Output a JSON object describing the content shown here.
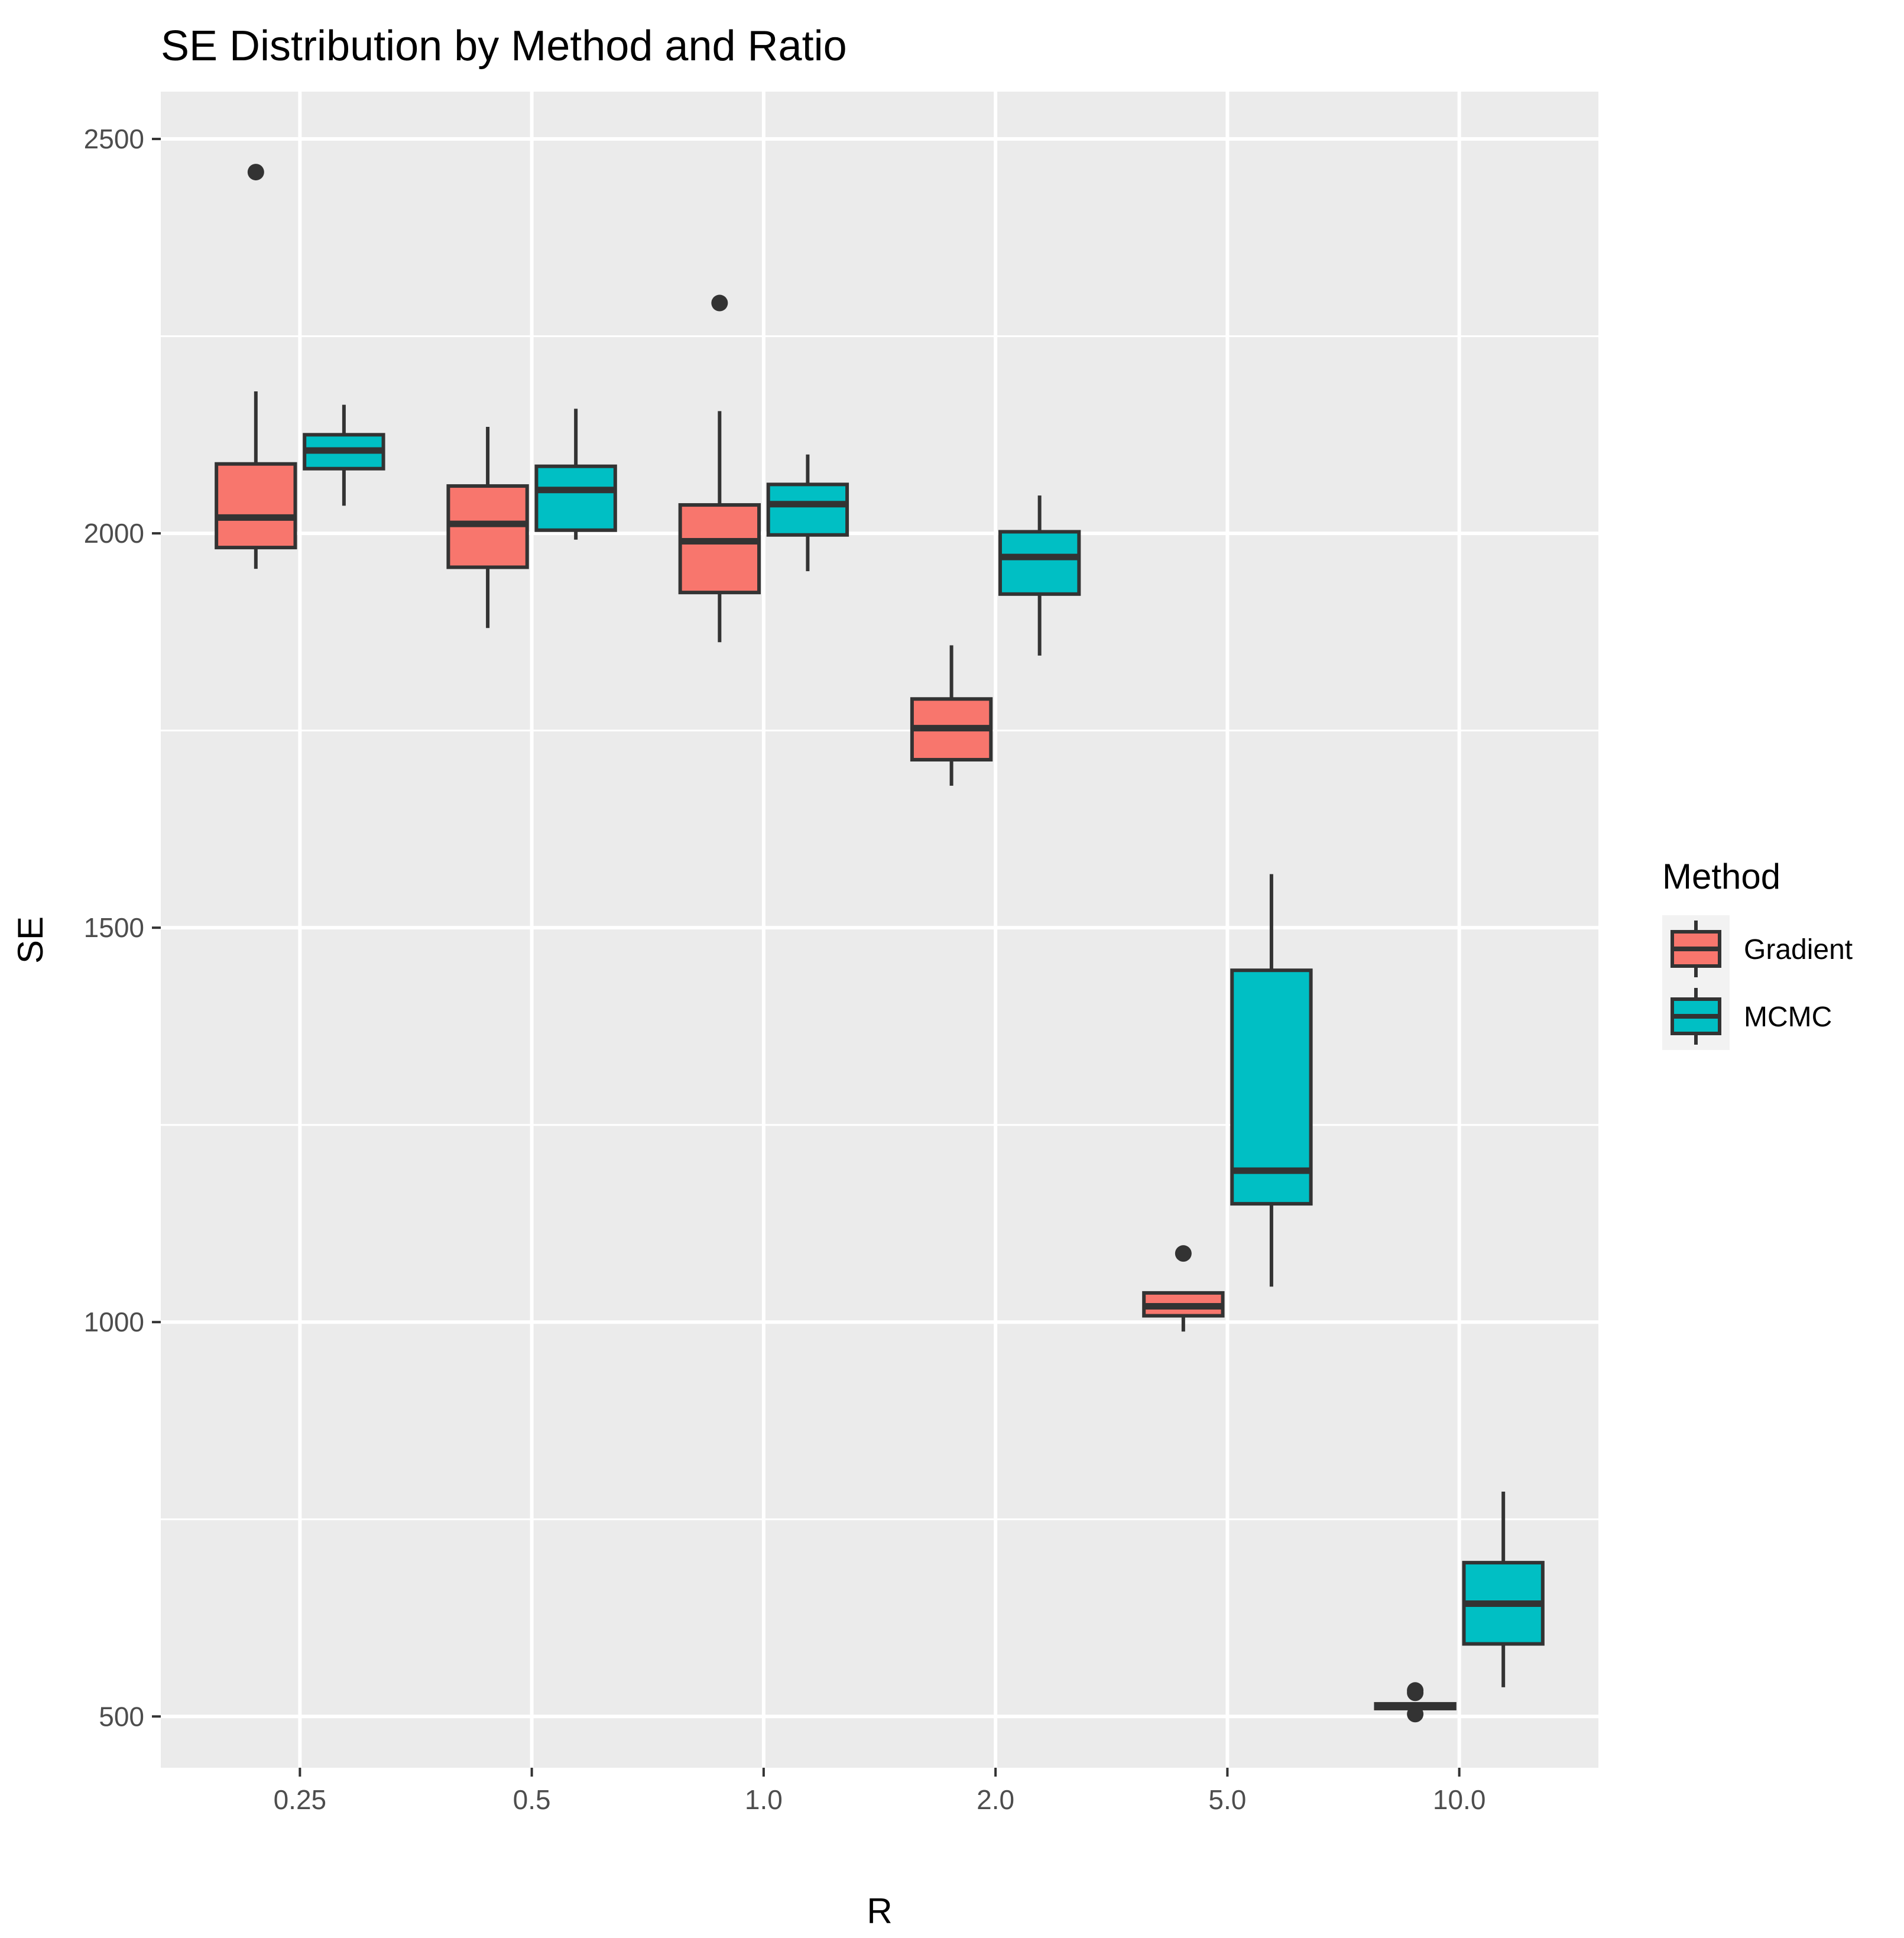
{
  "chart_data": {
    "type": "boxplot",
    "title": "SE Distribution by Method and Ratio",
    "xlabel": "R",
    "ylabel": "SE",
    "categories": [
      "0.25",
      "0.5",
      "1.0",
      "2.0",
      "5.0",
      "10.0"
    ],
    "ylim": [
      435,
      2560
    ],
    "yticks": [
      500,
      1000,
      1500,
      2000,
      2500
    ],
    "ytick_labels": [
      "500",
      "1000",
      "1500",
      "2000",
      "2500"
    ],
    "legend": {
      "title": "Method",
      "position": "right"
    },
    "colors": {
      "Gradient": "#F8766D",
      "MCMC": "#00BFC4",
      "outline": "#333333",
      "panel": "#EBEBEB",
      "grid": "#FFFFFF"
    },
    "series": [
      {
        "name": "Gradient",
        "boxes": [
          {
            "min": 1955,
            "q1": 1982,
            "median": 2020,
            "q3": 2088,
            "max": 2180,
            "outliers": [
              2458
            ]
          },
          {
            "min": 1880,
            "q1": 1957,
            "median": 2012,
            "q3": 2060,
            "max": 2135,
            "outliers": []
          },
          {
            "min": 1862,
            "q1": 1925,
            "median": 1990,
            "q3": 2036,
            "max": 2155,
            "outliers": [
              2292
            ]
          },
          {
            "min": 1680,
            "q1": 1713,
            "median": 1753,
            "q3": 1790,
            "max": 1858,
            "outliers": []
          },
          {
            "min": 988,
            "q1": 1008,
            "median": 1020,
            "q3": 1037,
            "max": 1037,
            "outliers": [
              1087
            ]
          },
          {
            "min": 510,
            "q1": 510,
            "median": 513,
            "q3": 516,
            "max": 516,
            "outliers": [
              503,
              530,
              533
            ]
          }
        ]
      },
      {
        "name": "MCMC",
        "boxes": [
          {
            "min": 2035,
            "q1": 2082,
            "median": 2105,
            "q3": 2125,
            "max": 2163,
            "outliers": []
          },
          {
            "min": 1992,
            "q1": 2004,
            "median": 2055,
            "q3": 2085,
            "max": 2158,
            "outliers": []
          },
          {
            "min": 1952,
            "q1": 1998,
            "median": 2037,
            "q3": 2062,
            "max": 2100,
            "outliers": []
          },
          {
            "min": 1845,
            "q1": 1923,
            "median": 1970,
            "q3": 2002,
            "max": 2048,
            "outliers": []
          },
          {
            "min": 1045,
            "q1": 1150,
            "median": 1192,
            "q3": 1446,
            "max": 1568,
            "outliers": []
          },
          {
            "min": 537,
            "q1": 592,
            "median": 643,
            "q3": 695,
            "max": 785,
            "outliers": []
          }
        ]
      }
    ]
  }
}
